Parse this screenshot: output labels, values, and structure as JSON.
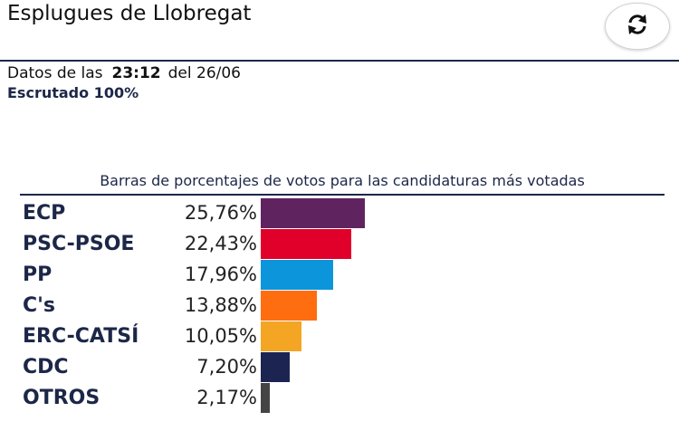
{
  "header": {
    "title": "Esplugues de Llobregat",
    "refresh_icon": "refresh-icon"
  },
  "info": {
    "prefix": "Datos de las",
    "time": "23:12",
    "date_text": "del 26/06",
    "scrutinized": "Escrutado 100%"
  },
  "chart_data": {
    "type": "bar",
    "title": "Barras de porcentajes de votos para las candidaturas más votadas",
    "categories": [
      "ECP",
      "PSC-PSOE",
      "PP",
      "C's",
      "ERC-CATSÍ",
      "CDC",
      "OTROS"
    ],
    "values": [
      25.76,
      22.43,
      17.96,
      13.88,
      10.05,
      7.2,
      2.17
    ],
    "labels": [
      "25,76%",
      "22,43%",
      "17,96%",
      "13,88%",
      "10,05%",
      "7,20%",
      "2,17%"
    ],
    "colors": [
      "#5f2460",
      "#e0002a",
      "#0d95dc",
      "#fe6d10",
      "#f5a524",
      "#1c2552",
      "#444444"
    ]
  }
}
